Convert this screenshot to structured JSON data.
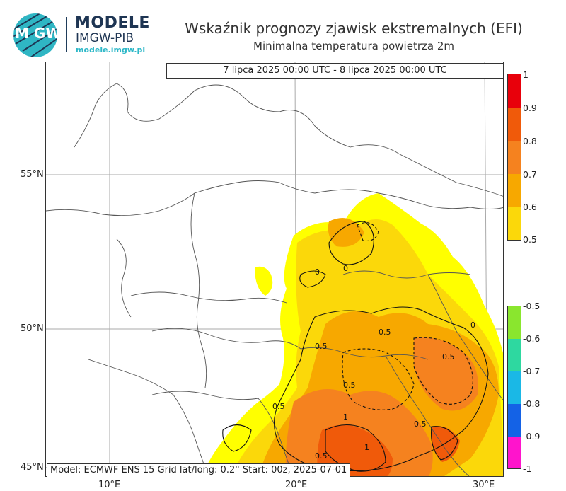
{
  "brand": {
    "logo_icon": "imgw-logo-icon",
    "logo_text": "IM GW",
    "name": "MODELE",
    "subname": "IMGW-PIB",
    "url": "modele.imgw.pl"
  },
  "title": "Wskaźnik prognozy zjawisk ekstremalnych (EFI)",
  "subtitle": "Minimalna temperatura powietrza 2m",
  "period": "7 lipca 2025 00:00 UTC - 8 lipca 2025 00:00 UTC",
  "footer": "Model: ECMWF  ENS 15  Grid lat/long: 0.2°  Start: 00z, 2025-07-01",
  "axes": {
    "lat_labels": [
      "55°N",
      "50°N",
      "45°N"
    ],
    "lon_labels": [
      "10°E",
      "20°E",
      "30°E"
    ]
  },
  "colorbar_positive": {
    "labels": [
      "1",
      "0.9",
      "0.8",
      "0.7",
      "0.6",
      "0.5"
    ],
    "colors": [
      "#e8000b",
      "#f05a0a",
      "#f5821f",
      "#f7a800",
      "#fbd80a",
      "#ffff00"
    ]
  },
  "colorbar_negative": {
    "labels": [
      "-0.5",
      "-0.6",
      "-0.7",
      "-0.8",
      "-0.9",
      "-1"
    ],
    "colors": [
      "#8ae62e",
      "#2ed8a0",
      "#1ab8e6",
      "#1462e6",
      "#ff14cc"
    ]
  },
  "contour_labels": [
    "0",
    "0.5",
    "1"
  ],
  "colors": {
    "land_border": "#555555",
    "grid": "#999999",
    "contour": "#111111"
  }
}
